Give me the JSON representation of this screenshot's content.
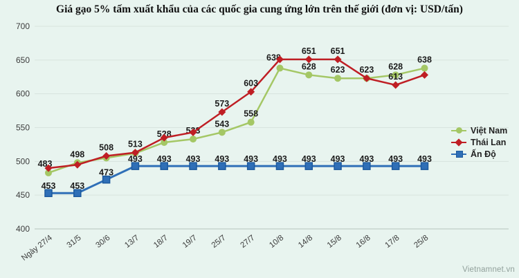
{
  "title": "Giá gạo 5% tấm xuất khẩu của các quốc gia cung ứng lớn trên thế giới (đơn vị: USD/tấn)",
  "watermark": "Vietnamnet.vn",
  "colors": {
    "background": "#e8f4ef",
    "grid": "#d7e3de",
    "axis": "#b6c3be",
    "viet_nam": "#a4c765",
    "thai_lan": "#bf1e24",
    "an_do": "#2f6fb7",
    "an_do_border": "#1d5a9e"
  },
  "chart_data": {
    "type": "line",
    "title": "Giá gạo 5% tấm xuất khẩu của các quốc gia cung ứng lớn trên thế giới (đơn vị: USD/tấn)",
    "categories": [
      "Ngày 27/4",
      "31/5",
      "30/6",
      "13/7",
      "18/7",
      "19/7",
      "25/7",
      "27/7",
      "10/8",
      "14/8",
      "15/8",
      "16/8",
      "17/8",
      "25/8"
    ],
    "ylim": [
      400,
      700
    ],
    "yticks": [
      700,
      650,
      600,
      550,
      500,
      450,
      400
    ],
    "grid": "horizontal",
    "legend_position": "right",
    "series": [
      {
        "name": "Việt Nam",
        "marker": "circle",
        "color": "#a4c765",
        "values": [
          483,
          498,
          505,
          512,
          528,
          533,
          543,
          558,
          638,
          628,
          623,
          623,
          628,
          638
        ],
        "labels": [
          "483",
          "498",
          "",
          "",
          "528",
          "533",
          "543",
          "558",
          "638",
          "628",
          "623",
          "",
          "628",
          "638"
        ],
        "label_dx": {
          "0": -5,
          "8": -9
        },
        "label_dy": {
          "0": -1,
          "8": -3
        },
        "label_shift": 0
      },
      {
        "name": "Thái Lan",
        "marker": "diamond",
        "color": "#bf1e24",
        "values": [
          490,
          495,
          508,
          513,
          535,
          543,
          573,
          603,
          651,
          651,
          651,
          623,
          613,
          628
        ],
        "labels": [
          "",
          "",
          "508",
          "513",
          "",
          "",
          "573",
          "603",
          "",
          "651",
          "651",
          "623",
          "613",
          ""
        ],
        "label_dx": {},
        "label_dy": {},
        "label_shift": 0
      },
      {
        "name": "Ấn Độ",
        "marker": "square",
        "color": "#2f6fb7",
        "border": "#1d5a9e",
        "values": [
          453,
          453,
          473,
          493,
          493,
          493,
          493,
          493,
          493,
          493,
          493,
          493,
          493,
          493
        ],
        "labels": [
          "453",
          "453",
          "473",
          "493",
          "493",
          "493",
          "493",
          "493",
          "493",
          "493",
          "493",
          "493",
          "493",
          "493"
        ],
        "label_dx": {},
        "label_dy": {},
        "label_shift": 2
      }
    ]
  },
  "legend": {
    "items": [
      {
        "label": "Việt Nam"
      },
      {
        "label": "Thái Lan"
      },
      {
        "label": "Ấn Độ"
      }
    ]
  }
}
